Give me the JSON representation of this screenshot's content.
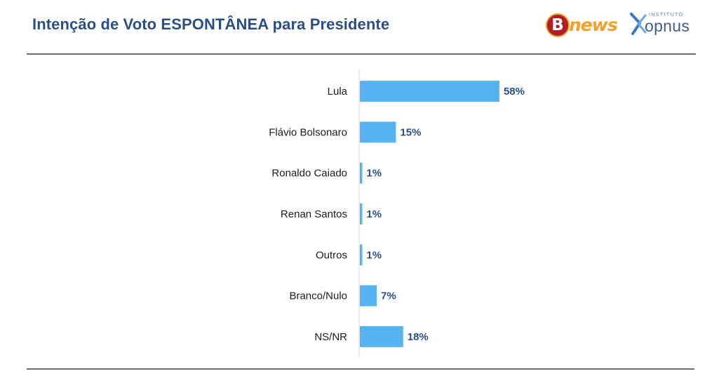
{
  "header": {
    "title": "Intenção de Voto ESPONTÂNEA para Presidente"
  },
  "logos": {
    "bnews": {
      "mark": "B",
      "word": "news"
    },
    "opnus": {
      "caption": "INSTITUTO",
      "word": "opnus"
    }
  },
  "colors": {
    "bar": "#56b3f2",
    "title": "#2a4f86",
    "value_label": "#2a4f86",
    "bnews_red": "#b01f24",
    "bnews_orange": "#f2a12b"
  },
  "chart_data": {
    "type": "bar",
    "orientation": "horizontal",
    "title": "Intenção de Voto ESPONTÂNEA para Presidente",
    "categories": [
      "Lula",
      "Flávio Bolsonaro",
      "Ronaldo Caiado",
      "Renan Santos",
      "Outros",
      "Branco/Nulo",
      "NS/NR"
    ],
    "values": [
      58,
      15,
      1,
      1,
      1,
      7,
      18
    ],
    "value_labels": [
      "58%",
      "15%",
      "1%",
      "1%",
      "1%",
      "7%",
      "18%"
    ],
    "xlim": [
      0,
      100
    ],
    "grid": false,
    "legend": "none"
  }
}
